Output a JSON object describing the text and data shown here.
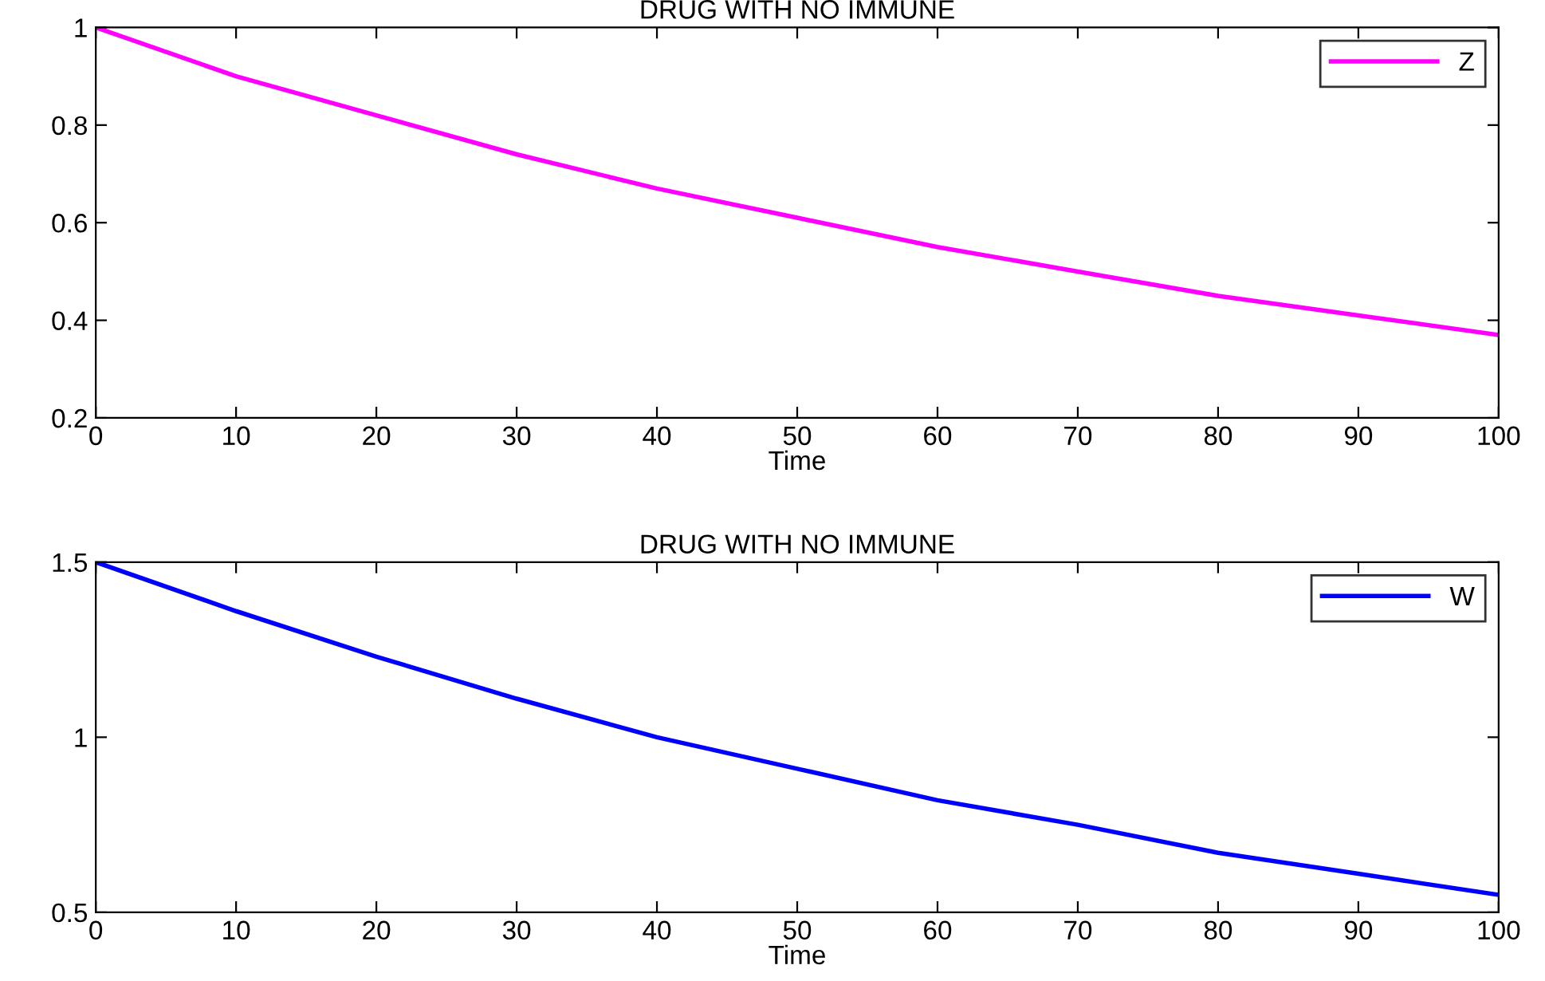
{
  "chart_data": [
    {
      "type": "line",
      "title": "DRUG WITH NO IMMUNE",
      "xlabel": "Time",
      "x": [
        0,
        10,
        20,
        30,
        40,
        50,
        60,
        70,
        80,
        90,
        100
      ],
      "series": [
        {
          "name": "Z",
          "color": "#ff00ff",
          "values": [
            1,
            0.9,
            0.82,
            0.74,
            0.67,
            0.61,
            0.55,
            0.5,
            0.45,
            0.41,
            0.37
          ]
        }
      ],
      "xlim": [
        0,
        100
      ],
      "xticks": [
        0,
        10,
        20,
        30,
        40,
        50,
        60,
        70,
        80,
        90,
        100
      ],
      "ylim": [
        0.2,
        1
      ],
      "yticks": [
        0.2,
        0.4,
        0.6,
        0.8,
        1
      ],
      "legend": "top right",
      "grid": false
    },
    {
      "type": "line",
      "title": "DRUG WITH NO IMMUNE",
      "xlabel": "Time",
      "x": [
        0,
        10,
        20,
        30,
        40,
        50,
        60,
        70,
        80,
        90,
        100
      ],
      "series": [
        {
          "name": "W",
          "color": "#0000ff",
          "values": [
            1.5,
            1.36,
            1.23,
            1.11,
            1.0,
            0.91,
            0.82,
            0.75,
            0.67,
            0.61,
            0.55
          ]
        }
      ],
      "xlim": [
        0,
        100
      ],
      "xticks": [
        0,
        10,
        20,
        30,
        40,
        50,
        60,
        70,
        80,
        90,
        100
      ],
      "ylim": [
        0.5,
        1.5
      ],
      "yticks": [
        0.5,
        1,
        1.5
      ],
      "legend": "top right",
      "grid": false
    }
  ]
}
